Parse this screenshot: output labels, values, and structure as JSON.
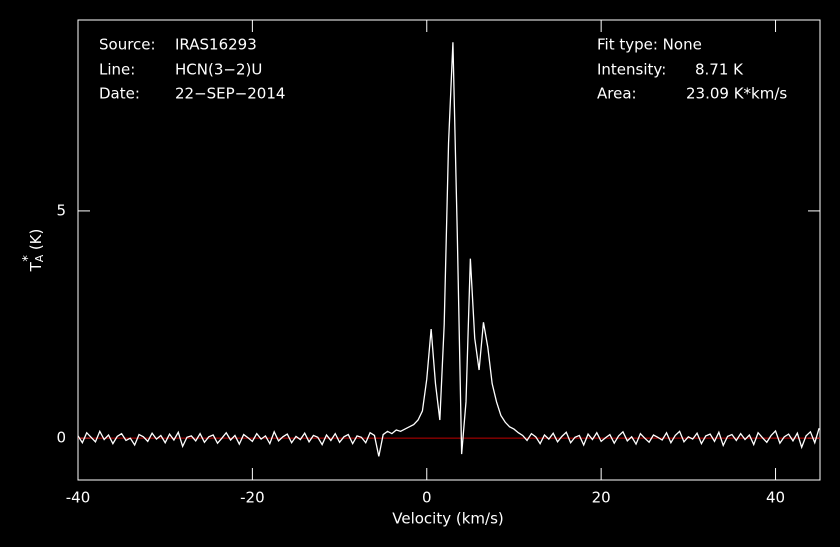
{
  "chart_data": {
    "type": "line",
    "x_label": "Velocity (km/s)",
    "y_label": {
      "main": "T",
      "sub": "A",
      "sup": "*",
      "unit": "(K)"
    },
    "annotations": {
      "left": [
        {
          "label": "Source:",
          "value": "IRAS16293"
        },
        {
          "label": "Line:",
          "value": "HCN(3−2)U"
        },
        {
          "label": "Date:",
          "value": "22−SEP−2014"
        }
      ],
      "right": [
        {
          "label": "Fit type: None"
        },
        {
          "label": "Intensity:",
          "value": "8.71 K"
        },
        {
          "label": "Area:",
          "value": "23.09 K*km/s"
        }
      ]
    },
    "xlim": [
      -40,
      45.1
    ],
    "ylim": [
      -0.92,
      9.2
    ],
    "xticks": [
      -40,
      -20,
      0,
      20,
      40
    ],
    "yticks": [
      0,
      5
    ],
    "baseline": {
      "value": 0,
      "color": "#c00000"
    },
    "series": [
      {
        "color": "#ffffff",
        "x": [
          -40,
          -39.5,
          -39,
          -38.5,
          -38,
          -37.5,
          -37,
          -36.5,
          -36,
          -35.5,
          -35,
          -34.5,
          -34,
          -33.5,
          -33,
          -32.5,
          -32,
          -31.5,
          -31,
          -30.5,
          -30,
          -29.5,
          -29,
          -28.5,
          -28,
          -27.5,
          -27,
          -26.5,
          -26,
          -25.5,
          -25,
          -24.5,
          -24,
          -23.5,
          -23,
          -22.5,
          -22,
          -21.5,
          -21,
          -20.5,
          -20,
          -19.5,
          -19,
          -18.5,
          -18,
          -17.5,
          -17,
          -16.5,
          -16,
          -15.5,
          -15,
          -14.5,
          -14,
          -13.5,
          -13,
          -12.5,
          -12,
          -11.5,
          -11,
          -10.5,
          -10,
          -9.5,
          -9,
          -8.5,
          -8,
          -7.5,
          -7,
          -6.5,
          -6,
          -5.5,
          -5,
          -4.5,
          -4,
          -3.5,
          -3,
          -2.5,
          -2,
          -1.5,
          -1,
          -0.5,
          0,
          0.5,
          1,
          1.5,
          2,
          2.5,
          3,
          3.5,
          4,
          4.5,
          5,
          5.5,
          6,
          6.5,
          7,
          7.5,
          8,
          8.5,
          9,
          9.5,
          10,
          10.5,
          11,
          11.5,
          12,
          12.5,
          13,
          13.5,
          14,
          14.5,
          15,
          15.5,
          16,
          16.5,
          17,
          17.5,
          18,
          18.5,
          19,
          19.5,
          20,
          20.5,
          21,
          21.5,
          22,
          22.5,
          23,
          23.5,
          24,
          24.5,
          25,
          25.5,
          26,
          26.5,
          27,
          27.5,
          28,
          28.5,
          29,
          29.5,
          30,
          30.5,
          31,
          31.5,
          32,
          32.5,
          33,
          33.5,
          34,
          34.5,
          35,
          35.5,
          36,
          36.5,
          37,
          37.5,
          38,
          38.5,
          39,
          39.5,
          40,
          40.5,
          41,
          41.5,
          42,
          42.5,
          43,
          43.5,
          44,
          44.5,
          45
        ],
        "values": [
          0.05,
          -0.1,
          0.12,
          0.02,
          -0.08,
          0.15,
          -0.03,
          0.07,
          -0.12,
          0.04,
          0.1,
          -0.05,
          0.0,
          -0.15,
          0.08,
          0.03,
          -0.07,
          0.11,
          -0.02,
          0.06,
          -0.1,
          0.09,
          -0.04,
          0.13,
          -0.18,
          0.02,
          0.05,
          -0.06,
          0.1,
          -0.09,
          0.03,
          0.07,
          -0.11,
          0.0,
          0.12,
          -0.04,
          0.06,
          -0.13,
          0.08,
          0.01,
          -0.07,
          0.1,
          -0.02,
          0.05,
          -0.12,
          0.14,
          -0.06,
          0.03,
          0.09,
          -0.1,
          0.04,
          -0.03,
          0.11,
          -0.08,
          0.06,
          0.02,
          -0.14,
          0.07,
          -0.05,
          0.1,
          -0.09,
          0.03,
          0.08,
          -0.12,
          0.05,
          0.02,
          -0.1,
          0.12,
          0.06,
          -0.4,
          0.08,
          0.15,
          0.1,
          0.18,
          0.15,
          0.2,
          0.25,
          0.3,
          0.4,
          0.6,
          1.3,
          2.4,
          1.2,
          0.4,
          2.5,
          6.5,
          8.71,
          4.5,
          -0.35,
          0.8,
          3.95,
          2.2,
          1.5,
          2.55,
          2.0,
          1.2,
          0.8,
          0.5,
          0.35,
          0.25,
          0.2,
          0.12,
          0.06,
          -0.05,
          0.1,
          0.03,
          -0.12,
          0.07,
          -0.02,
          0.11,
          -0.08,
          0.04,
          0.13,
          -0.1,
          0.02,
          0.06,
          -0.15,
          0.09,
          -0.03,
          0.12,
          -0.07,
          0.01,
          0.08,
          -0.11,
          0.05,
          0.14,
          -0.06,
          0.03,
          -0.13,
          0.1,
          0.0,
          -0.09,
          0.07,
          0.02,
          -0.04,
          0.12,
          -0.1,
          0.06,
          0.15,
          -0.08,
          0.03,
          -0.02,
          0.11,
          -0.12,
          0.05,
          0.09,
          -0.07,
          0.13,
          -0.16,
          0.04,
          0.08,
          -0.05,
          0.1,
          -0.03,
          0.07,
          -0.14,
          0.12,
          0.01,
          -0.09,
          0.06,
          0.16,
          -0.11,
          0.03,
          0.09,
          -0.06,
          0.11,
          -0.2,
          0.05,
          0.14,
          -0.1,
          0.22
        ]
      }
    ]
  }
}
